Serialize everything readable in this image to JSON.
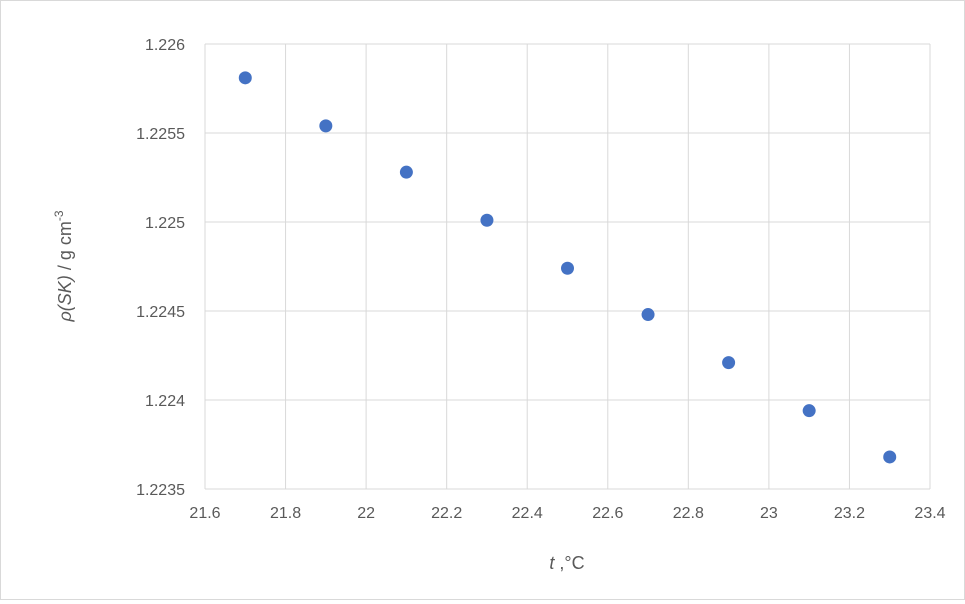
{
  "chart_data": {
    "type": "scatter",
    "title": "",
    "xlabel_italic": "t",
    "xlabel_unit": " ,°C",
    "ylabel_italic": "ρ(SK)",
    "ylabel_unit": " / g cm",
    "ylabel_exponent": "-3",
    "xlim": [
      21.6,
      23.4
    ],
    "ylim": [
      1.2235,
      1.226
    ],
    "xticks": [
      21.6,
      21.8,
      22,
      22.2,
      22.4,
      22.6,
      22.8,
      23,
      23.2,
      23.4
    ],
    "yticks": [
      1.2235,
      1.224,
      1.2245,
      1.225,
      1.2255,
      1.226
    ],
    "xtick_labels": [
      "21.6",
      "21.8",
      "22",
      "22.2",
      "22.4",
      "22.6",
      "22.8",
      "23",
      "23.2",
      "23.4"
    ],
    "ytick_labels": [
      "1.2235",
      "1.224",
      "1.2245",
      "1.225",
      "1.2255",
      "1.226"
    ],
    "grid": true,
    "legend": "none",
    "marker_color": "#4472C4",
    "grid_color": "#d9d9d9",
    "series": [
      {
        "x": [
          21.7,
          21.9,
          22.1,
          22.3,
          22.5,
          22.7,
          22.9,
          23.1,
          23.3
        ],
        "y": [
          1.22581,
          1.22554,
          1.22528,
          1.22501,
          1.22474,
          1.22448,
          1.22421,
          1.22394,
          1.22368
        ]
      }
    ]
  }
}
